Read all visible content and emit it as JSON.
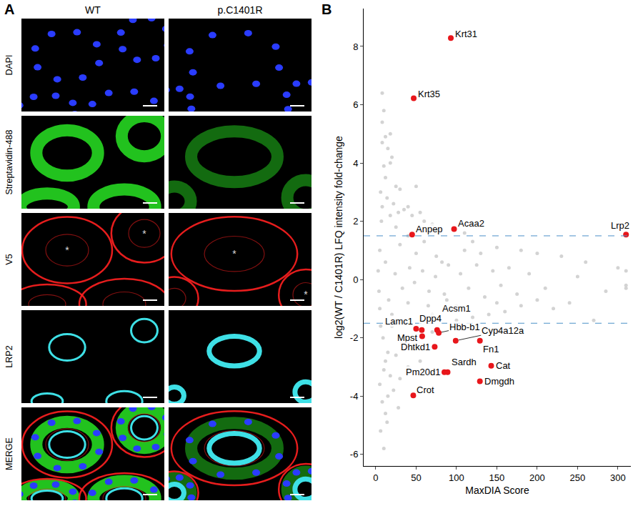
{
  "panel_a": {
    "label": "A",
    "columns": [
      "WT",
      "p.C1401R"
    ],
    "rows": [
      {
        "label": "DAPI",
        "color": "#2a3cff"
      },
      {
        "label": "Streptavidin-488",
        "color": "#22c21e"
      },
      {
        "label": "V5",
        "color": "#ff2020",
        "annotation": "*"
      },
      {
        "label": "LRP2",
        "color": "#3ee0e6"
      },
      {
        "label": "MERGE"
      }
    ]
  },
  "chart_data": {
    "type": "scatter",
    "panel_label": "B",
    "x_label": "MaxDIA Score",
    "y_label": "log2(WT / C1401R) LFQ intensity fold-change",
    "xlim": [
      -15,
      316
    ],
    "xticks": [
      0,
      50,
      100,
      150,
      200,
      250,
      300
    ],
    "ylim": [
      -6.4,
      9.3
    ],
    "yticks": [
      -6,
      -4,
      -2,
      0,
      2,
      4,
      6,
      8
    ],
    "grid": false,
    "thresholds": {
      "values": [
        1.5,
        -1.5
      ],
      "color": "#4a90c8",
      "line_style": "dash"
    },
    "points": {
      "color": "#d3d3d3",
      "x": [
        8,
        10,
        12,
        8,
        15,
        20,
        18,
        10,
        25,
        30,
        12,
        6,
        14,
        22,
        35,
        40,
        45,
        28,
        55,
        60,
        70,
        80,
        110,
        120,
        150,
        180,
        200,
        230,
        260,
        310,
        310,
        310,
        270,
        240,
        220,
        200,
        180,
        160,
        140,
        120,
        100,
        95,
        90,
        85,
        75,
        65,
        50,
        40,
        30,
        20,
        15,
        10,
        5,
        8,
        12,
        6,
        10,
        18,
        25,
        35,
        45,
        60,
        55,
        70,
        40,
        30,
        22,
        15,
        28,
        14,
        20,
        5,
        5,
        7,
        9,
        3,
        4,
        12,
        16,
        24,
        33,
        42,
        48,
        58,
        66,
        74,
        82,
        88,
        105,
        115,
        125,
        135,
        145,
        155,
        165,
        175,
        190,
        210,
        250,
        285,
        300,
        110,
        130,
        100,
        150,
        60,
        70,
        40,
        35,
        25,
        18,
        12,
        8,
        6,
        50,
        18,
        8
      ],
      "y": [
        6.4,
        5.8,
        4.9,
        4.7,
        4.5,
        4.2,
        4.0,
        3.9,
        3.2,
        3.1,
        3.5,
        3.0,
        2.8,
        2.6,
        2.4,
        2.5,
        2.2,
        2.3,
        2.3,
        2.0,
        1.9,
        1.7,
        1.6,
        1.3,
        1.1,
        1.0,
        0.9,
        0.8,
        0.6,
        0.3,
        -0.2,
        -0.3,
        -1.4,
        -0.8,
        -1.0,
        -0.7,
        -0.9,
        -1.1,
        -1.2,
        -1.3,
        -1.4,
        -1.0,
        0.5,
        -0.5,
        0.8,
        -0.9,
        0.9,
        -0.8,
        1.2,
        -1.6,
        -2.5,
        -3.1,
        -3.6,
        -4.2,
        -4.6,
        -5.2,
        -5.8,
        -3.3,
        -2.6,
        -2.2,
        -2.4,
        -2.3,
        -2.8,
        -1.8,
        -3.0,
        -3.4,
        -3.8,
        -4.0,
        -4.4,
        -4.9,
        -1.2,
        -1.0,
        1.0,
        2.0,
        -2.0,
        0.3,
        -0.4,
        0.6,
        -0.7,
        0.2,
        -0.3,
        0.4,
        -0.1,
        0.3,
        -0.4,
        0.1,
        0.6,
        -0.7,
        0.2,
        -0.3,
        0.5,
        -0.6,
        0.3,
        -0.2,
        0.4,
        -0.5,
        0.2,
        -0.3,
        0.1,
        -0.4,
        0.4,
        1.0,
        0.9,
        -0.9,
        -0.8,
        1.3,
        -1.2,
        1.5,
        -1.5,
        1.8,
        2.2,
        -2.8,
        2.5,
        -1.6,
        3.2,
        5.0,
        5.4
      ]
    },
    "highlighted": {
      "color": "#e8161b",
      "labels": [
        "Krt31",
        "Krt35",
        "Anpep",
        "Acaa2",
        "Lrp2",
        "Lamc1",
        "Mpst",
        "Dpp4",
        "Acsm1",
        "Hbb-b1",
        "Dhtkd1",
        "Cyp4a12a",
        "Fn1",
        "Sardh",
        "Pm20d1",
        "Cat",
        "Dmgdh",
        "Crot"
      ],
      "x": [
        93,
        47,
        45,
        97,
        310,
        50,
        57.5,
        57,
        76,
        78,
        73,
        99,
        129,
        89,
        85,
        143,
        129,
        46.5
      ],
      "y": [
        8.29,
        6.22,
        1.54,
        1.73,
        1.54,
        -1.69,
        -1.95,
        -1.73,
        -1.73,
        -1.83,
        -2.31,
        -2.1,
        -2.1,
        -3.18,
        -3.18,
        -2.96,
        -3.49,
        -3.98
      ]
    }
  }
}
